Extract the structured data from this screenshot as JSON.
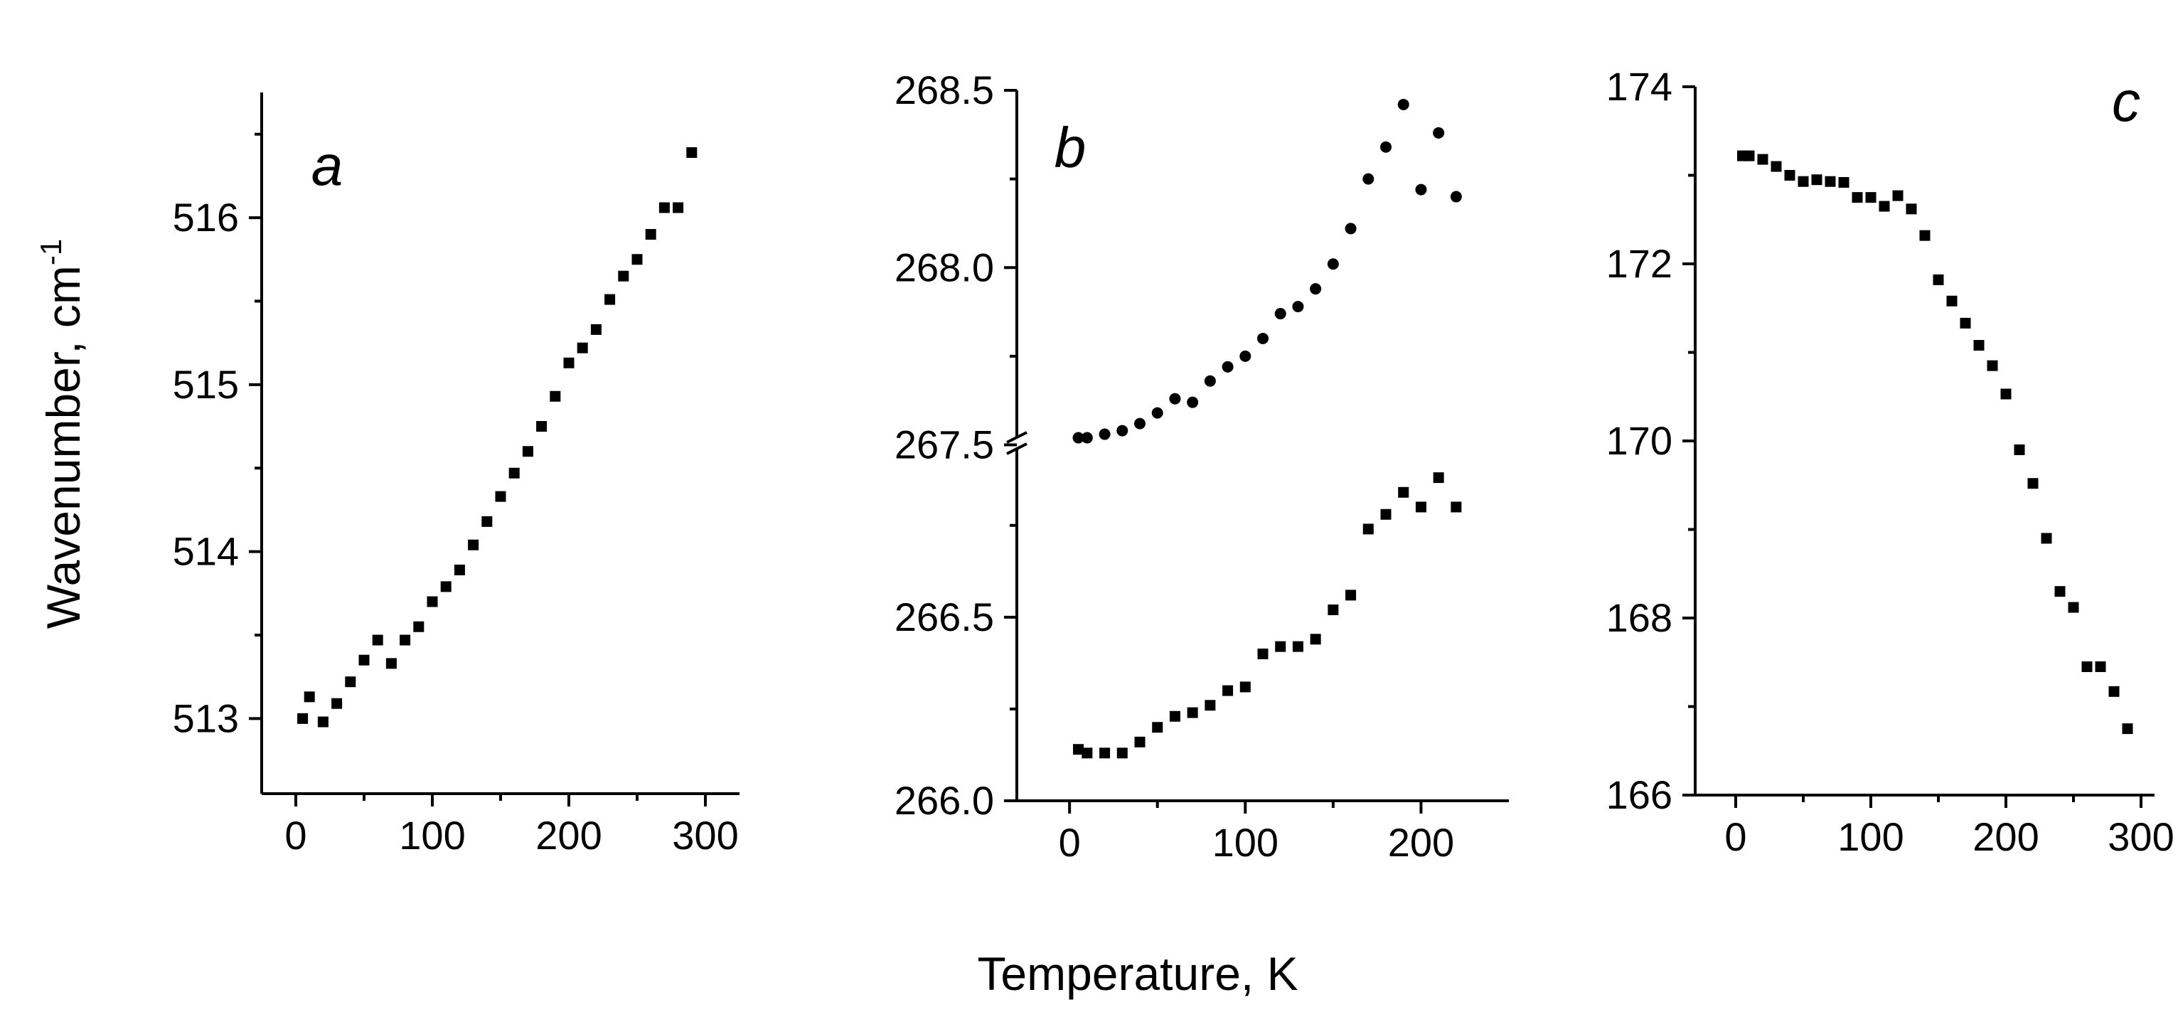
{
  "figure": {
    "ylabel_main": "Wavenumber, cm",
    "ylabel_sup": "-1",
    "xlabel": "Temperature, K"
  },
  "chart_data": [
    {
      "type": "scatter",
      "panel_label": "a",
      "xlim": [
        -25,
        325
      ],
      "ylim": [
        512.55,
        516.75
      ],
      "xticks": [
        0,
        100,
        200,
        300
      ],
      "xtick_labels": [
        "0",
        "100",
        "200",
        "300"
      ],
      "yticks": [
        513,
        514,
        515,
        516
      ],
      "ytick_labels": [
        "513",
        "514",
        "515",
        "516"
      ],
      "yminor": [
        512.5,
        513.5,
        514.5,
        515.5,
        516.5
      ],
      "marker": "square",
      "series": [
        {
          "x": [
            5,
            10,
            20,
            30,
            40,
            50,
            60,
            70,
            80,
            90,
            100,
            110,
            120,
            130,
            140,
            150,
            160,
            170,
            180,
            190,
            200,
            210,
            220,
            230,
            240,
            250,
            260,
            270,
            280,
            290
          ],
          "y": [
            513.0,
            513.13,
            512.98,
            513.09,
            513.22,
            513.35,
            513.47,
            513.33,
            513.47,
            513.55,
            513.7,
            513.79,
            513.89,
            514.04,
            514.18,
            514.33,
            514.47,
            514.6,
            514.75,
            514.93,
            515.13,
            515.22,
            515.33,
            515.51,
            515.65,
            515.75,
            515.9,
            516.06,
            516.06,
            516.39
          ]
        }
      ]
    },
    {
      "type": "scatter",
      "panel_label": "b",
      "xlim": [
        -30,
        250
      ],
      "broken_axis": true,
      "xticks": [
        0,
        100,
        200
      ],
      "xtick_labels": [
        "0",
        "100",
        "200"
      ],
      "upper_ylim": [
        267.495,
        268.5
      ],
      "upper_yticks": [
        267.5,
        268.0,
        268.5
      ],
      "upper_ytick_labels": [
        "267.5",
        "268.0",
        "268.5"
      ],
      "upper_yminor": [
        267.75,
        268.25
      ],
      "lower_ylim": [
        266.0,
        266.98
      ],
      "lower_yticks": [
        266.0,
        266.5
      ],
      "lower_ytick_labels": [
        "266.0",
        "266.5"
      ],
      "lower_yminor": [
        266.25,
        266.75
      ],
      "series": [
        {
          "marker": "circle",
          "panel": "upper",
          "x": [
            5,
            10,
            20,
            30,
            40,
            50,
            60,
            70,
            80,
            90,
            100,
            110,
            120,
            130,
            140,
            150,
            160,
            170,
            180,
            190,
            200,
            210,
            220
          ],
          "y": [
            267.52,
            267.52,
            267.53,
            267.54,
            267.56,
            267.59,
            267.63,
            267.62,
            267.68,
            267.72,
            267.75,
            267.8,
            267.87,
            267.89,
            267.94,
            268.01,
            268.11,
            268.25,
            268.34,
            268.46,
            268.22,
            268.38,
            268.2
          ]
        },
        {
          "marker": "square",
          "panel": "lower",
          "x": [
            5,
            10,
            20,
            30,
            40,
            50,
            60,
            70,
            80,
            90,
            100,
            110,
            120,
            130,
            140,
            150,
            160,
            170,
            180,
            190,
            200,
            210,
            220
          ],
          "y": [
            266.14,
            266.13,
            266.13,
            266.13,
            266.16,
            266.2,
            266.23,
            266.24,
            266.26,
            266.3,
            266.31,
            266.4,
            266.42,
            266.42,
            266.44,
            266.52,
            266.56,
            266.74,
            266.78,
            266.84,
            266.8,
            266.88,
            266.8
          ]
        }
      ]
    },
    {
      "type": "scatter",
      "panel_label": "c",
      "xlim": [
        -30,
        310
      ],
      "ylim": [
        166.0,
        174.0
      ],
      "xticks": [
        0,
        100,
        200,
        300
      ],
      "xtick_labels": [
        "0",
        "100",
        "200",
        "300"
      ],
      "yticks": [
        166,
        168,
        170,
        172,
        174
      ],
      "ytick_labels": [
        "166",
        "168",
        "170",
        "172",
        "174"
      ],
      "yminor": [
        167,
        169,
        171,
        173
      ],
      "marker": "square",
      "series": [
        {
          "x": [
            5,
            10,
            20,
            30,
            40,
            50,
            60,
            70,
            80,
            90,
            100,
            110,
            120,
            130,
            140,
            150,
            160,
            170,
            180,
            190,
            200,
            210,
            220,
            230,
            240,
            250,
            260,
            270,
            280,
            290
          ],
          "y": [
            173.22,
            173.22,
            173.18,
            173.1,
            173.0,
            172.93,
            172.95,
            172.93,
            172.92,
            172.75,
            172.75,
            172.65,
            172.77,
            172.62,
            172.32,
            171.82,
            171.58,
            171.33,
            171.08,
            170.85,
            170.53,
            169.9,
            169.52,
            168.9,
            168.3,
            168.12,
            167.45,
            167.45,
            167.17,
            166.75
          ]
        }
      ]
    }
  ]
}
